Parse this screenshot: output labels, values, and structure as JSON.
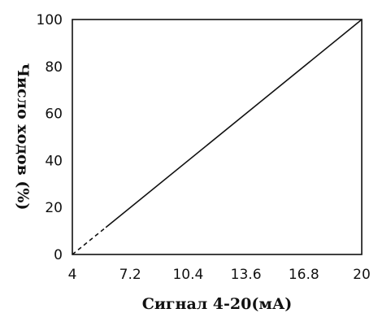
{
  "chart_data": {
    "type": "line",
    "title": "",
    "xlabel": "Сигнал 4-20(мА)",
    "ylabel": "Число ходов (%)",
    "xlim": [
      4,
      20
    ],
    "ylim": [
      0,
      100
    ],
    "xticks": [
      4,
      7.2,
      10.4,
      13.6,
      16.8,
      20
    ],
    "xtick_labels": [
      "4",
      "7.2",
      "10.4",
      "13.6",
      "16.8",
      "20"
    ],
    "yticks": [
      0,
      20,
      40,
      60,
      80,
      100
    ],
    "ytick_labels": [
      "0",
      "20",
      "40",
      "60",
      "80",
      "100"
    ],
    "grid": false,
    "legend": "none",
    "series": [
      {
        "style": "dashed",
        "x": [
          4,
          5.85
        ],
        "y": [
          0,
          11.5
        ]
      },
      {
        "style": "solid",
        "x": [
          5.85,
          20
        ],
        "y": [
          11.5,
          100
        ]
      }
    ],
    "line_color": "#111111"
  }
}
